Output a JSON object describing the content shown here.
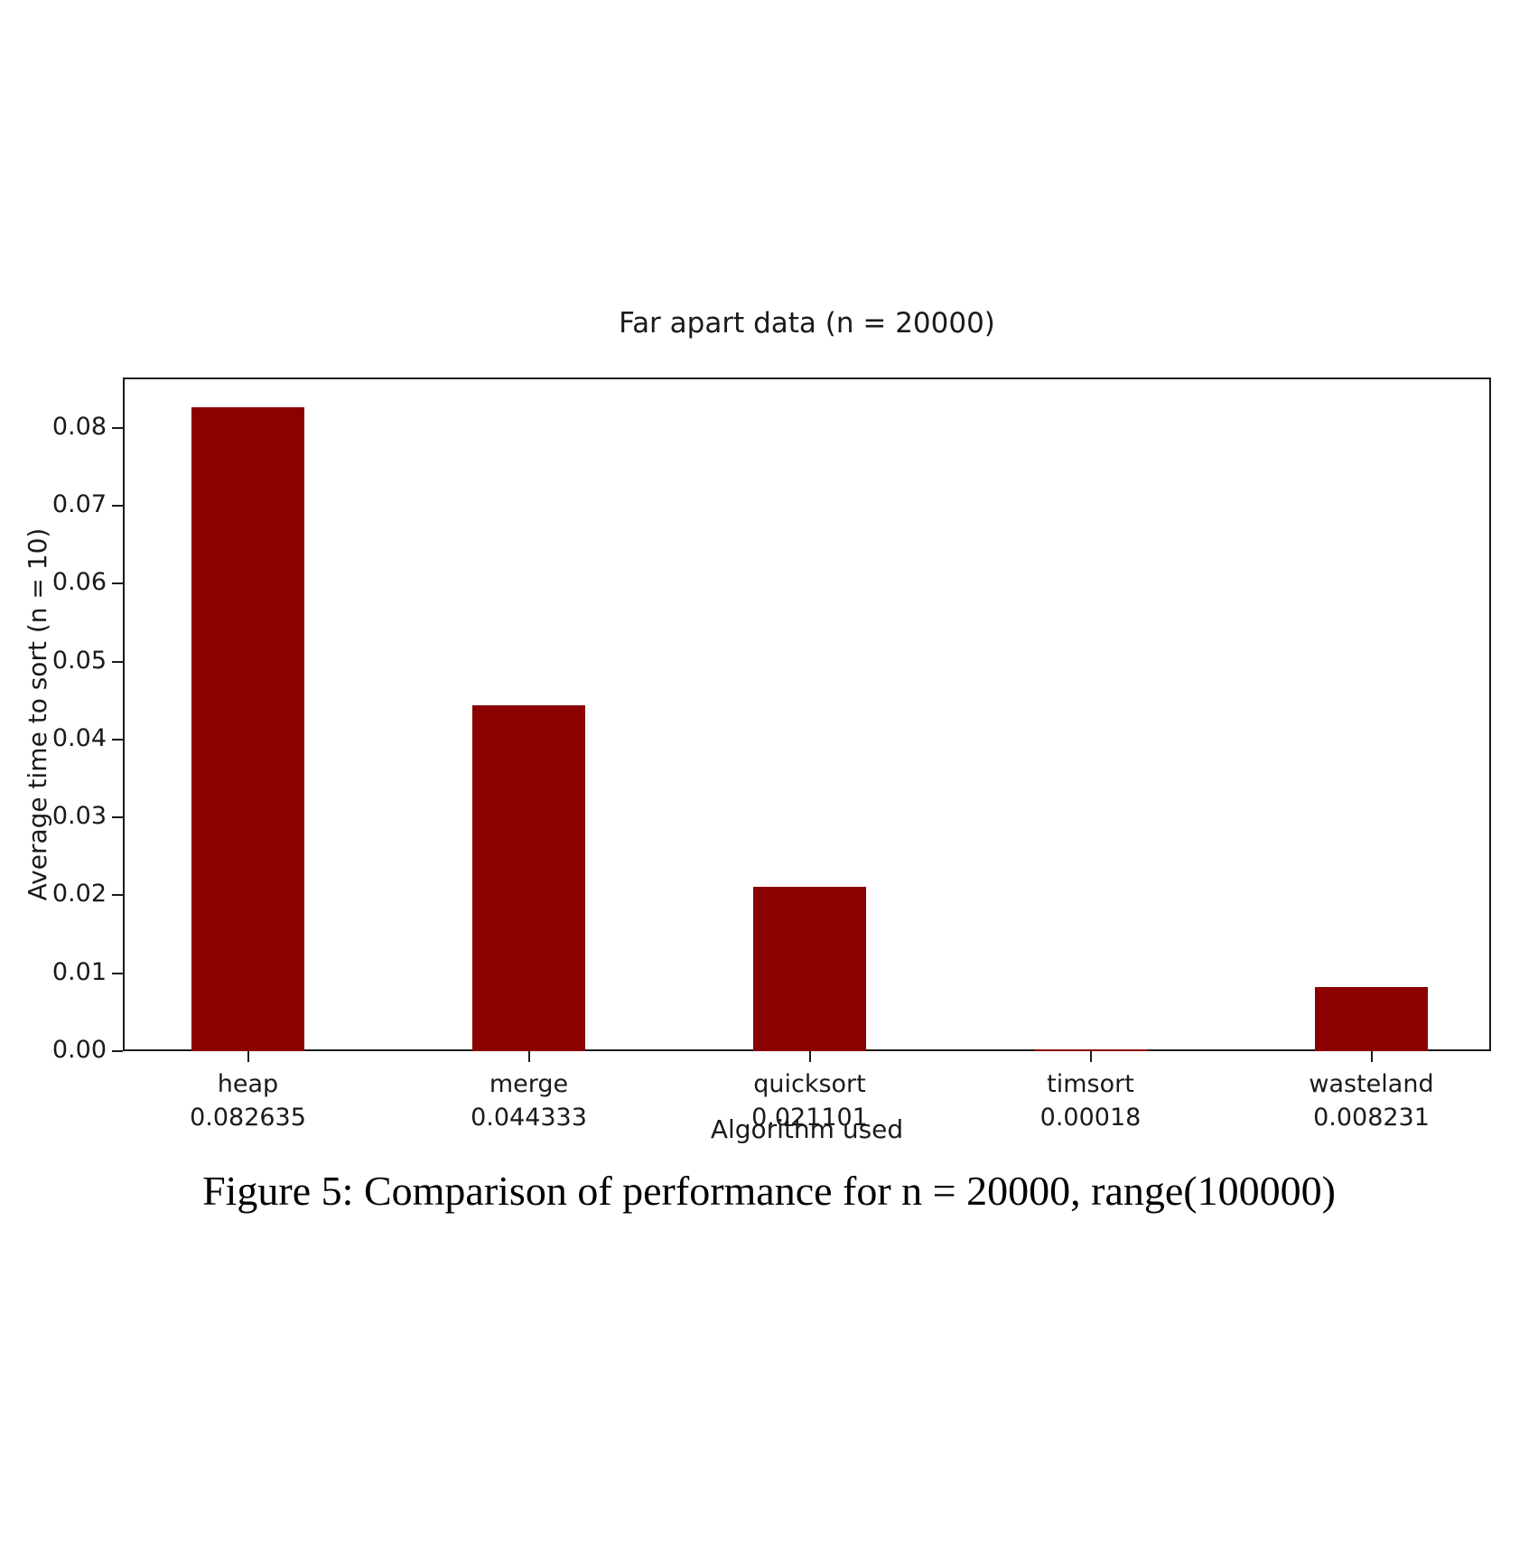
{
  "chart_data": {
    "type": "bar",
    "title": "Far apart data (n = 20000)",
    "xlabel": "Algorithm used",
    "ylabel": "Average time to sort (n = 10)",
    "categories": [
      "heap",
      "merge",
      "quicksort",
      "timsort",
      "wasteland"
    ],
    "values": [
      0.082635,
      0.044333,
      0.021101,
      0.00018,
      0.008231
    ],
    "value_labels": [
      "0.082635",
      "0.044333",
      "0.021101",
      "0.00018",
      "0.008231"
    ],
    "ytick_values": [
      0.0,
      0.01,
      0.02,
      0.03,
      0.04,
      0.05,
      0.06,
      0.07,
      0.08
    ],
    "ytick_labels": [
      "0.00",
      "0.01",
      "0.02",
      "0.03",
      "0.04",
      "0.05",
      "0.06",
      "0.07",
      "0.08"
    ],
    "ylim": [
      0,
      0.0865
    ],
    "bar_color": "#8b0000",
    "axis_color": "#1a1a1a",
    "grid": false,
    "legend_position": "none"
  },
  "caption": "Figure 5: Comparison of performance for n = 20000, range(100000)"
}
